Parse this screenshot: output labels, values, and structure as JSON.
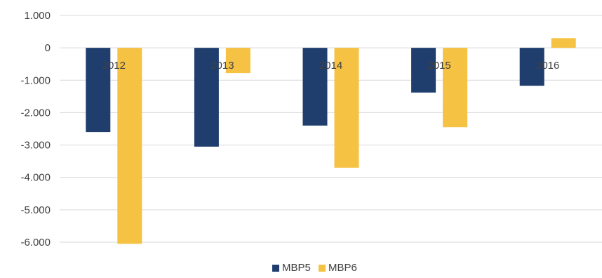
{
  "chart_data": {
    "type": "bar",
    "title": "",
    "xlabel": "",
    "ylabel": "",
    "categories": [
      "2012",
      "2013",
      "2014",
      "2015",
      "2016"
    ],
    "series": [
      {
        "name": "MBP5",
        "color": "#1f3e6e",
        "values": [
          -2600,
          -3050,
          -2400,
          -1380,
          -1170
        ]
      },
      {
        "name": "MBP6",
        "color": "#f6c244",
        "values": [
          -6050,
          -780,
          -3700,
          -2450,
          300
        ]
      }
    ],
    "ylim": [
      -6000,
      1000
    ],
    "yticks": [
      1000,
      0,
      -1000,
      -2000,
      -3000,
      -4000,
      -5000,
      -6000
    ],
    "ytick_labels": [
      "1.000",
      "0",
      "-1.000",
      "-2.000",
      "-3.000",
      "-4.000",
      "-5.000",
      "-6.000"
    ],
    "grid": true,
    "legend_position": "bottom"
  }
}
